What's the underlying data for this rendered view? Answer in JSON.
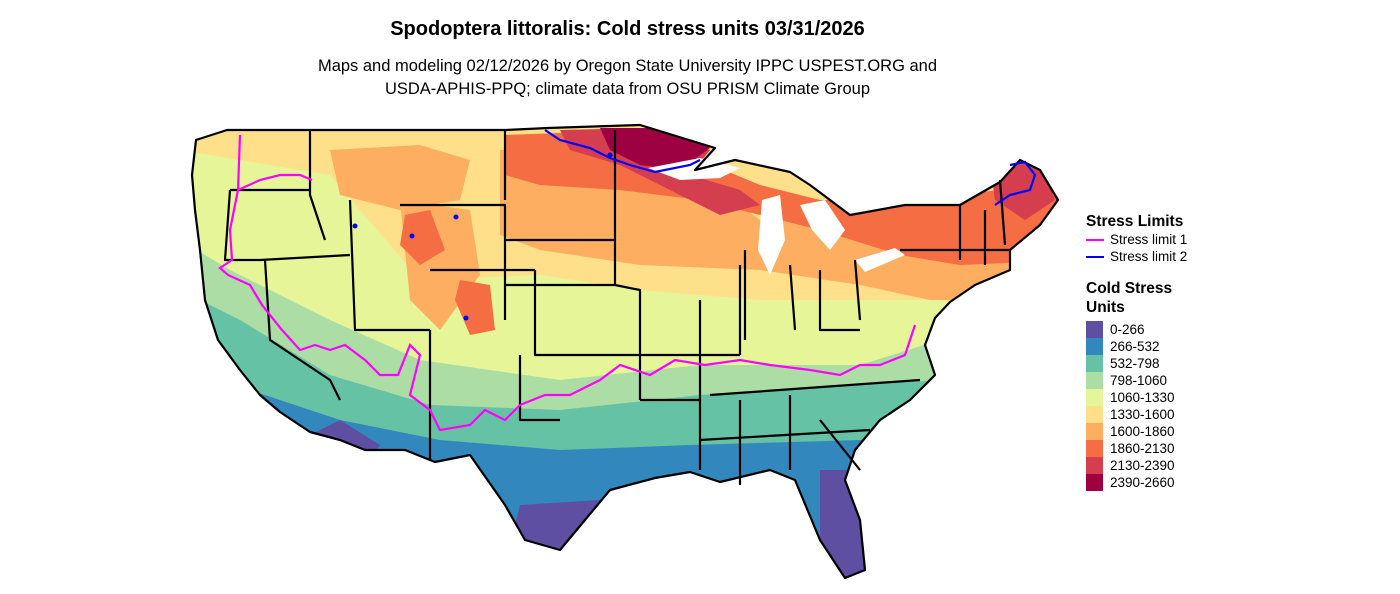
{
  "title": "Spodoptera littoralis: Cold stress units 03/31/2026",
  "subtitle_line1": "Maps and modeling 02/12/2026 by Oregon State University IPPC USPEST.ORG and",
  "subtitle_line2": "USDA-APHIS-PPQ; climate data from OSU PRISM Climate Group",
  "legend": {
    "stress_title": "Stress Limits",
    "stress_items": [
      {
        "label": "Stress limit 1",
        "color": "#ff00ff"
      },
      {
        "label": "Stress limit 2",
        "color": "#0000ff"
      }
    ],
    "cold_title": "Cold Stress Units",
    "cold_items": [
      {
        "label": "0-266",
        "color": "#5e4fa2"
      },
      {
        "label": "266-532",
        "color": "#3288bd"
      },
      {
        "label": "532-798",
        "color": "#66c2a5"
      },
      {
        "label": "798-1060",
        "color": "#abdda4"
      },
      {
        "label": "1060-1330",
        "color": "#e6f598"
      },
      {
        "label": "1330-1600",
        "color": "#fee08b"
      },
      {
        "label": "1600-1860",
        "color": "#fdae61"
      },
      {
        "label": "1860-2130",
        "color": "#f46d43"
      },
      {
        "label": "2130-2390",
        "color": "#d53e4f"
      },
      {
        "label": "2390-2660",
        "color": "#9e0142"
      }
    ]
  }
}
